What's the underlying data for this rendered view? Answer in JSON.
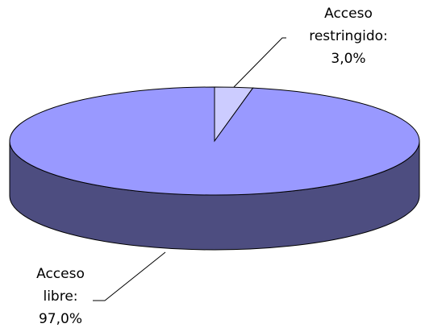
{
  "chart_data": {
    "type": "pie3d",
    "categories": [
      "Acceso libre:",
      "Acceso restringido:"
    ],
    "values": [
      97.0,
      3.0
    ],
    "value_labels": [
      "97,0%",
      "3,0%"
    ],
    "colors": [
      "#9999ff",
      "#ccccff"
    ]
  }
}
